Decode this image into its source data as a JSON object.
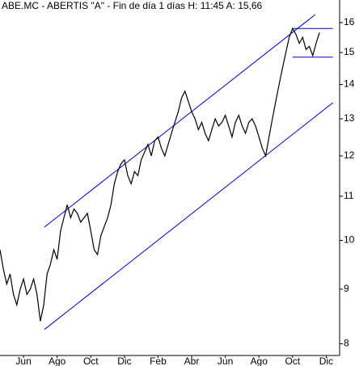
{
  "chart_data": {
    "type": "line",
    "title": "ABE.MC - ABERTIS  \"A\" - Fin de día 1 días H: 11:45 A: 15,66",
    "log_y": true,
    "grid": false,
    "x": [
      -0.7,
      -0.6,
      -0.5,
      -0.4,
      -0.3,
      -0.2,
      -0.1,
      0.0,
      0.1,
      0.2,
      0.3,
      0.4,
      0.5,
      0.6,
      0.7,
      0.8,
      0.9,
      1.0,
      1.1,
      1.2,
      1.3,
      1.4,
      1.5,
      1.6,
      1.7,
      1.8,
      1.9,
      2.0,
      2.1,
      2.2,
      2.3,
      2.4,
      2.5,
      2.6,
      2.7,
      2.8,
      2.9,
      3.0,
      3.1,
      3.2,
      3.3,
      3.4,
      3.5,
      3.6,
      3.7,
      3.8,
      3.9,
      4.0,
      4.1,
      4.2,
      4.3,
      4.4,
      4.5,
      4.6,
      4.7,
      4.8,
      4.9,
      5.0,
      5.1,
      5.2,
      5.3,
      5.4,
      5.5,
      5.6,
      5.7,
      5.8,
      5.9,
      6.0,
      6.1,
      6.2,
      6.3,
      6.4,
      6.5,
      6.6,
      6.7,
      6.8,
      6.9,
      7.0,
      7.1,
      7.2,
      7.3,
      7.4,
      7.5,
      7.6,
      7.7,
      7.8,
      7.9,
      8.0,
      8.1,
      8.2,
      8.3,
      8.4,
      8.5,
      8.6,
      8.7,
      8.8
    ],
    "series": [
      {
        "name": "ABE.MC",
        "color": "#000000",
        "values": [
          9.8,
          9.4,
          9.1,
          9.3,
          8.9,
          8.7,
          9.0,
          9.2,
          8.9,
          9.0,
          9.2,
          8.9,
          8.4,
          8.7,
          9.3,
          9.5,
          9.8,
          9.6,
          10.2,
          10.5,
          10.8,
          10.5,
          10.7,
          10.6,
          10.4,
          10.5,
          10.6,
          10.2,
          9.8,
          9.7,
          10.1,
          10.3,
          10.5,
          10.8,
          11.3,
          11.6,
          11.8,
          11.9,
          11.5,
          11.3,
          11.6,
          11.5,
          11.9,
          12.1,
          12.3,
          12.0,
          12.4,
          12.5,
          12.2,
          12.0,
          12.3,
          12.6,
          12.9,
          13.2,
          13.6,
          13.8,
          13.5,
          13.2,
          13.0,
          12.7,
          12.9,
          12.6,
          12.4,
          12.7,
          13.0,
          12.8,
          12.9,
          13.1,
          12.8,
          12.5,
          12.9,
          13.1,
          12.8,
          12.6,
          12.9,
          13.0,
          12.8,
          12.5,
          12.2,
          12.0,
          12.5,
          13.0,
          13.5,
          14.0,
          14.5,
          15.0,
          15.5,
          15.8,
          15.6,
          15.3,
          15.5,
          15.1,
          15.2,
          14.9,
          15.3,
          15.66
        ]
      }
    ],
    "trendlines": [
      {
        "color": "#0000cc",
        "x": [
          0.62,
          8.675
        ],
        "values": [
          10.29,
          16.28
        ]
      },
      {
        "color": "#0000cc",
        "x": [
          0.62,
          9.2
        ],
        "values": [
          8.25,
          13.46
        ]
      },
      {
        "color": "#0000cc",
        "x": [
          8.0,
          9.2
        ],
        "values": [
          15.8,
          15.8
        ]
      },
      {
        "color": "#0000cc",
        "x": [
          8.0,
          9.2
        ],
        "values": [
          14.85,
          14.85
        ]
      }
    ],
    "xlim": [
      -0.7,
      9.4
    ],
    "xticks": [
      {
        "value": 0,
        "label": "Jun"
      },
      {
        "value": 1,
        "label": "Ago"
      },
      {
        "value": 2,
        "label": "Oct"
      },
      {
        "value": 3,
        "label": "Dic"
      },
      {
        "value": 4,
        "label": "Feb"
      },
      {
        "value": 5,
        "label": "Abr"
      },
      {
        "value": 6,
        "label": "Jun"
      },
      {
        "value": 7,
        "label": "Ago"
      },
      {
        "value": 8,
        "label": "Oct"
      },
      {
        "value": 9,
        "label": "Dic"
      }
    ],
    "ylim": [
      7.8,
      16.8
    ],
    "yticks": [
      8,
      9,
      10,
      11,
      12,
      13,
      14,
      15,
      16
    ]
  }
}
